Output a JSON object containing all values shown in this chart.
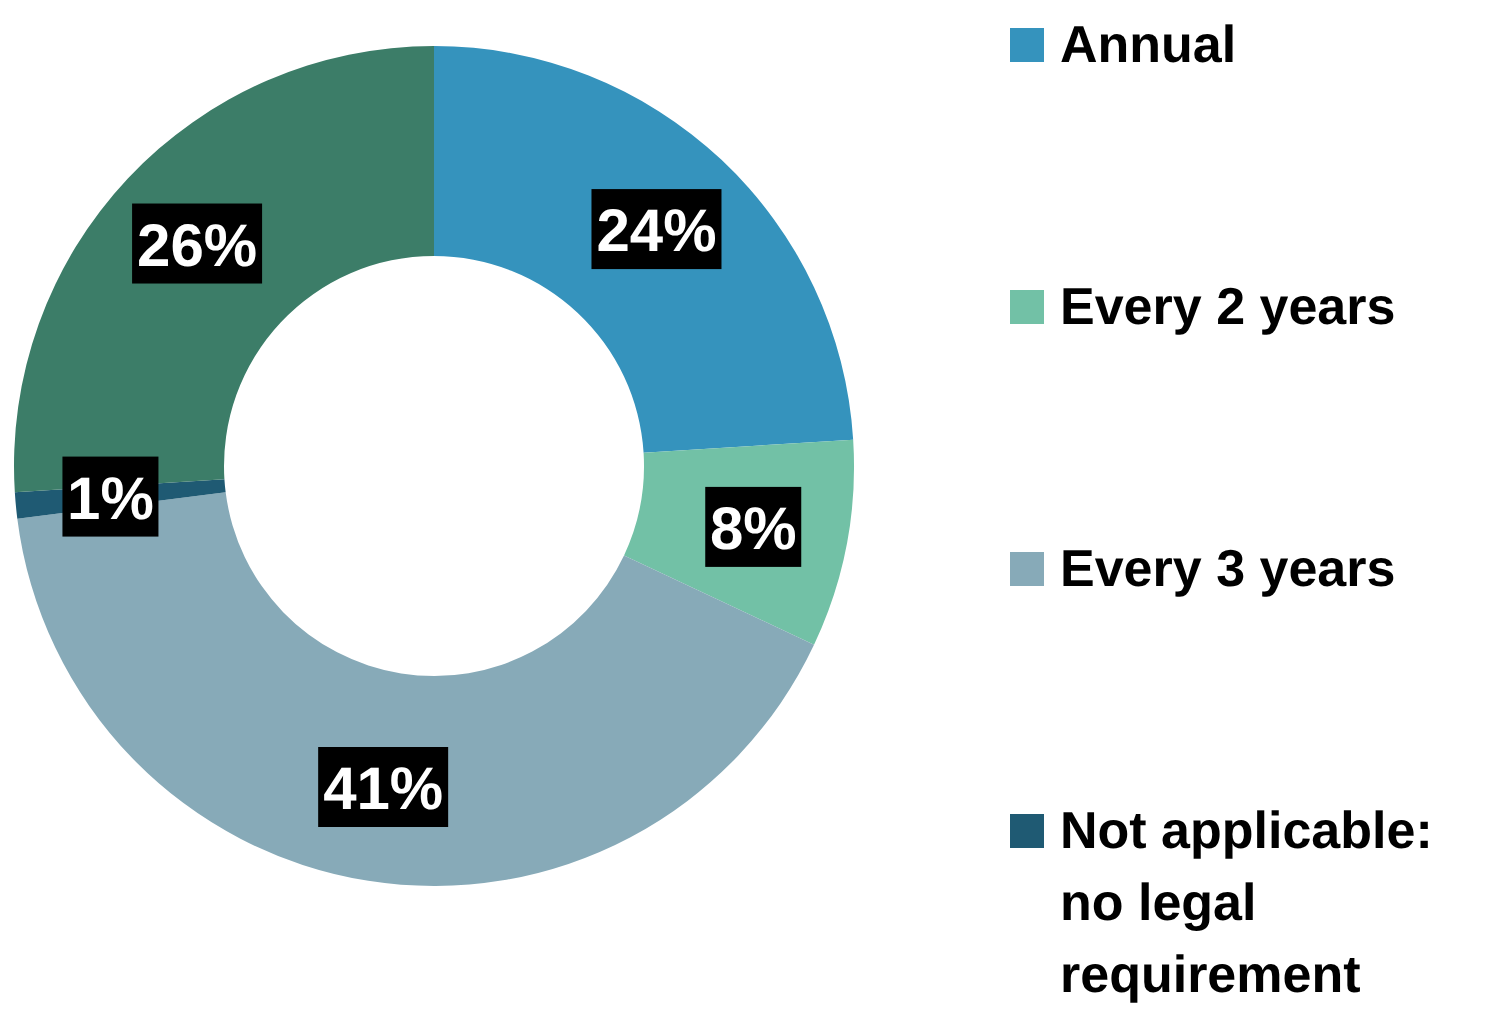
{
  "chart_data": {
    "type": "donut",
    "categories": [
      "Annual",
      "Every 2 years",
      "Every 3 years",
      "Not applicable: no legal requirement",
      null
    ],
    "values": [
      24,
      8,
      41,
      1,
      26
    ],
    "colors": [
      "#3593bd",
      "#72c1a6",
      "#87aab8",
      "#1f5a73",
      "#3c7d68"
    ],
    "value_labels": [
      "24%",
      "8%",
      "41%",
      "1%",
      "26%"
    ],
    "legend": "right"
  }
}
